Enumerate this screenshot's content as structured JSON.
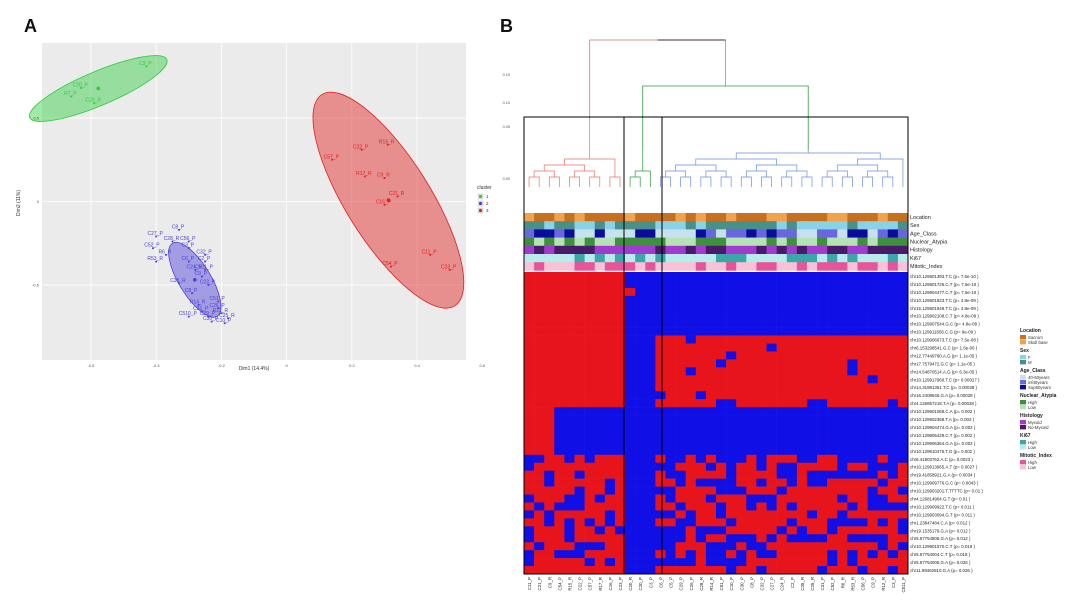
{
  "panels": {
    "a": "A",
    "b": "B"
  },
  "colors": {
    "cluster1": "#2ecc40",
    "cluster2": "#4a3fd6",
    "cluster3": "#e0201c",
    "heat_red": "#e8141c",
    "heat_blue": "#1010e6",
    "panel_bg": "#ebebeb"
  },
  "pca": {
    "xlabel": "Dim1 (14.4%)",
    "ylabel": "Dim2 (11%)",
    "x_ticks": [
      "-0.6",
      "-0.4",
      "-0.2",
      "0",
      "0.2",
      "0.4",
      "0.6"
    ],
    "y_ticks": [
      "0.5",
      "0",
      "-0.5"
    ],
    "legend_title": "cluster",
    "legend_items": [
      "1",
      "2",
      "3"
    ]
  },
  "chart_data": {
    "type": "scatter",
    "xlabel": "Dim1 (14.4%)",
    "ylabel": "Dim2 (11%)",
    "series": [
      {
        "name": "1",
        "points": [
          {
            "label": "C3_P",
            "x": -0.43,
            "y": 0.81
          },
          {
            "label": "C20_P",
            "x": -0.63,
            "y": 0.68
          },
          {
            "label": "R7_P",
            "x": -0.66,
            "y": 0.63
          },
          {
            "label": "C20_R",
            "x": -0.59,
            "y": 0.59
          }
        ]
      },
      {
        "name": "2",
        "points": [
          {
            "label": "C8_P",
            "x": -0.33,
            "y": -0.17
          },
          {
            "label": "C27_P",
            "x": -0.4,
            "y": -0.21
          },
          {
            "label": "C28_R",
            "x": -0.35,
            "y": -0.24
          },
          {
            "label": "C56_P",
            "x": -0.3,
            "y": -0.24
          },
          {
            "label": "C52_P",
            "x": -0.41,
            "y": -0.28
          },
          {
            "label": "C3_P",
            "x": -0.3,
            "y": -0.28
          },
          {
            "label": "R6_R",
            "x": -0.37,
            "y": -0.32
          },
          {
            "label": "C32_P",
            "x": -0.25,
            "y": -0.32
          },
          {
            "label": "R53_R",
            "x": -0.4,
            "y": -0.36
          },
          {
            "label": "C6_P",
            "x": -0.3,
            "y": -0.36
          },
          {
            "label": "C2_P",
            "x": -0.25,
            "y": -0.36
          },
          {
            "label": "C24_R",
            "x": -0.28,
            "y": -0.41
          },
          {
            "label": "C511_P",
            "x": -0.25,
            "y": -0.41
          },
          {
            "label": "C9_P",
            "x": -0.26,
            "y": -0.45
          },
          {
            "label": "C35_R",
            "x": -0.33,
            "y": -0.49
          },
          {
            "label": "C23_P",
            "x": -0.24,
            "y": -0.5
          },
          {
            "label": "C8_P",
            "x": -0.29,
            "y": -0.55
          },
          {
            "label": "C51_P",
            "x": -0.21,
            "y": -0.6
          },
          {
            "label": "R14_R",
            "x": -0.27,
            "y": -0.62
          },
          {
            "label": "C26_P",
            "x": -0.21,
            "y": -0.64
          },
          {
            "label": "C31_P",
            "x": -0.26,
            "y": -0.66
          },
          {
            "label": "R12_R",
            "x": -0.2,
            "y": -0.67
          },
          {
            "label": "C510_P",
            "x": -0.3,
            "y": -0.69
          },
          {
            "label": "C29_P",
            "x": -0.24,
            "y": -0.69
          },
          {
            "label": "C25_R",
            "x": -0.18,
            "y": -0.7
          },
          {
            "label": "C30_P",
            "x": -0.23,
            "y": -0.72
          },
          {
            "label": "C10_P",
            "x": -0.19,
            "y": -0.73
          }
        ]
      },
      {
        "name": "3",
        "points": [
          {
            "label": "C22_P",
            "x": 0.23,
            "y": 0.31
          },
          {
            "label": "R15_R",
            "x": 0.31,
            "y": 0.34
          },
          {
            "label": "C57_P",
            "x": 0.14,
            "y": 0.25
          },
          {
            "label": "R17_R",
            "x": 0.24,
            "y": 0.15
          },
          {
            "label": "C9_R",
            "x": 0.3,
            "y": 0.14
          },
          {
            "label": "C21_R",
            "x": 0.34,
            "y": 0.03
          },
          {
            "label": "C16_P",
            "x": 0.3,
            "y": -0.02
          },
          {
            "label": "C54_P",
            "x": 0.32,
            "y": -0.39
          },
          {
            "label": "C11_P",
            "x": 0.44,
            "y": -0.32
          },
          {
            "label": "C23_P",
            "x": 0.5,
            "y": -0.41
          }
        ]
      }
    ]
  },
  "heatmap": {
    "dendro_ticks": [
      "0.15",
      "0.10",
      "0.05",
      "0.00"
    ],
    "annotation_rows": [
      "Location",
      "Sex",
      "Age_Class",
      "Nuclear_Atypia",
      "Histology",
      "Ki67",
      "Mitotic_Index"
    ],
    "rows": [
      "chr10.129901393.T.C (p= 7.6e-10 )",
      "chr10.129901726.C.T (p= 7.6e-10 )",
      "chr10.129904477.C.T (p= 7.6e-10 )",
      "chr10.129901823.T.C (p= 4.8e-09 )",
      "chr15.129901948.T.C (p= 4.8e-09 )",
      "chr10.129902108.C.T (p= 4.8e-09 )",
      "chr10.129907544.G.C (p= 4.8e-09 )",
      "chr10.129911656.C.G (p= 9e-09 )",
      "chr10.129906673.T.C (p= 7.5e-08 )",
      "chr6.153298541.G.C (p= 1.5e-06 )",
      "chr12.77449790.A.G (p= 1.1e-05 )",
      "chr17.7579472.G.C (p= 1.1e-05 )",
      "chr14.54870514.A.G (p= 6.3e-05 )",
      "chr10.129917960.T.C (p= 0.00027 )",
      "chr14.31981351.T.C (p= 0.00028 )",
      "chr16.2408646.G.A (p= 0.00028 )",
      "chr4.126857218.T.A (p= 0.00028 )",
      "chr10.129901068.C.A (p= 0.002 )",
      "chr10.129902368.T.A (p= 0.002 )",
      "chr10.129904474.G.A (p= 0.002 )",
      "chr10.129905429.C.T (p= 0.002 )",
      "chr10.129906364.G.A (p= 0.002 )",
      "chr10.129910475.T.G (p= 0.002 )",
      "chr6.41903762.A.C (p= 0.0023 )",
      "chr10.129913965.A.T (p= 0.0027 )",
      "chr19.41858921.G.A (p= 0.0034 )",
      "chr10.129909776.G.C (p= 0.0043 )",
      "chr10.129903201.T.TTTTC (p= 0.01 )",
      "chr4.126814964.G.T (p= 0.01 )",
      "chr10.129909922.T.C (p= 0.011 )",
      "chr10.129903094.G.T (p= 0.011 )",
      "chr1.23847484.C.A (p= 0.012 )",
      "chr19.1535179.G.A (p= 0.012 )",
      "chr5.57754806.G.A (p= 0.012 )",
      "chr10.129901570.C.T (p= 0.018 )",
      "chr5.57754004.C.T (p= 0.018 )",
      "chr5.57754005.G.A (p= 0.026 )",
      "chr11.99462810.G.A (p= 0.026 )"
    ],
    "columns": [
      "C11_P",
      "C21_P",
      "C9_R",
      "C54_P",
      "R15_R",
      "C22_P",
      "C57_P",
      "R17_R",
      "C16_P",
      "C23_P",
      "C20_R",
      "C20_P",
      "C3_P",
      "C6_P",
      "C5_P",
      "C29_P",
      "C26_P",
      "C28_R",
      "R14_R",
      "C51_P",
      "C10_P",
      "C30_P",
      "C8_P",
      "C32_P",
      "C27_P",
      "C24_R",
      "C2_P",
      "C35_R",
      "C25_R",
      "C31_P",
      "C52_P",
      "R6_R",
      "R53_R",
      "C56_P",
      "C9_P",
      "R12_R",
      "C3_P",
      "C511_P"
    ]
  },
  "legend": {
    "groups": [
      {
        "title": "Location",
        "items": [
          {
            "label": "Sacrum",
            "color": "#c8701e"
          },
          {
            "label": "Skull base",
            "color": "#f2a24a"
          }
        ]
      },
      {
        "title": "Sex",
        "items": [
          {
            "label": "F",
            "color": "#8ad3e6"
          },
          {
            "label": "M",
            "color": "#4a8f8a"
          }
        ]
      },
      {
        "title": "Age_Class",
        "items": [
          {
            "label": "40-60years",
            "color": "#c6e2ee"
          },
          {
            "label": "inf40years",
            "color": "#6a66e0"
          },
          {
            "label": "Sup60years",
            "color": "#0b0b9e"
          }
        ]
      },
      {
        "title": "Nuclear_Atypia",
        "items": [
          {
            "label": "High",
            "color": "#3e8f3e"
          },
          {
            "label": "Low",
            "color": "#b6e3b6"
          }
        ]
      },
      {
        "title": "Histology",
        "items": [
          {
            "label": "Myxoid",
            "color": "#a23ad0"
          },
          {
            "label": "No-Myxoid",
            "color": "#4a1a6a"
          }
        ]
      },
      {
        "title": "Ki67",
        "items": [
          {
            "label": "High",
            "color": "#3aa8a8"
          },
          {
            "label": "Low",
            "color": "#b8ecec"
          }
        ]
      },
      {
        "title": "Mitotic_Index",
        "items": [
          {
            "label": "High",
            "color": "#e8549a"
          },
          {
            "label": "Low",
            "color": "#f6c2d6"
          }
        ]
      }
    ]
  }
}
